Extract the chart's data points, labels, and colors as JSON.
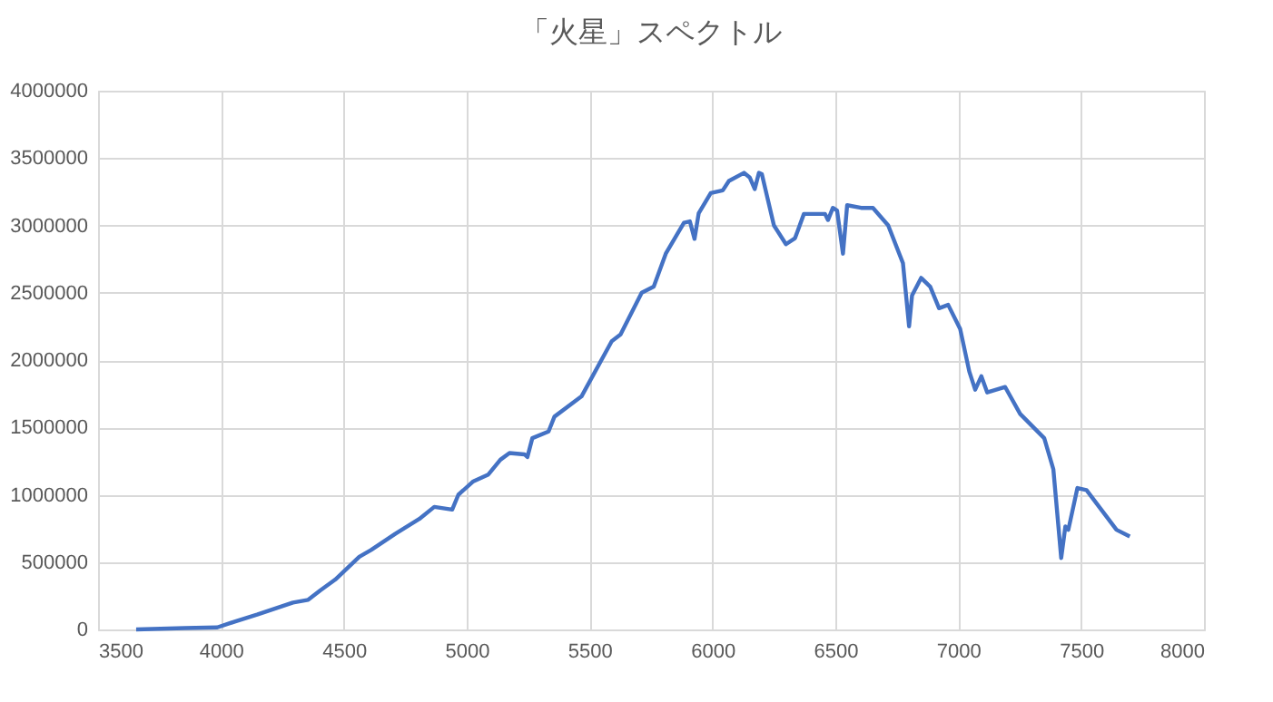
{
  "chart_data": {
    "type": "line",
    "title": "「火星」スペクトル",
    "x": [
      3655,
      3853,
      3985,
      4059,
      4147,
      4293,
      4355,
      4404,
      4465,
      4563,
      4611,
      4709,
      4807,
      4868,
      4941,
      4966,
      5027,
      5088,
      5137,
      5174,
      5235,
      5247,
      5267,
      5333,
      5357,
      5467,
      5590,
      5626,
      5712,
      5761,
      5810,
      5884,
      5908,
      5927,
      5944,
      5993,
      6042,
      6067,
      6128,
      6152,
      6172,
      6189,
      6201,
      6250,
      6299,
      6336,
      6372,
      6458,
      6470,
      6490,
      6507,
      6531,
      6548,
      6605,
      6653,
      6715,
      6775,
      6800,
      6812,
      6849,
      6886,
      6922,
      6959,
      7008,
      7045,
      7069,
      7094,
      7118,
      7191,
      7252,
      7350,
      7387,
      7419,
      7436,
      7448,
      7485,
      7522,
      7644,
      7698
    ],
    "series": [
      {
        "color": "#4472c4",
        "values": [
          0,
          10000,
          15000,
          60000,
          110000,
          200000,
          220000,
          290000,
          370000,
          540000,
          590000,
          710000,
          820000,
          910000,
          890000,
          1000000,
          1100000,
          1150000,
          1260000,
          1310000,
          1300000,
          1280000,
          1420000,
          1470000,
          1580000,
          1730000,
          2140000,
          2190000,
          2500000,
          2545000,
          2790000,
          3020000,
          3030000,
          2900000,
          3090000,
          3240000,
          3260000,
          3330000,
          3390000,
          3355000,
          3270000,
          3390000,
          3380000,
          3000000,
          2860000,
          2905000,
          3085000,
          3085000,
          3040000,
          3130000,
          3110000,
          2790000,
          3150000,
          3130000,
          3130000,
          3000000,
          2720000,
          2250000,
          2480000,
          2610000,
          2545000,
          2385000,
          2410000,
          2230000,
          1915000,
          1780000,
          1880000,
          1760000,
          1800000,
          1600000,
          1420000,
          1190000,
          530000,
          765000,
          740000,
          1050000,
          1035000,
          740000,
          690000
        ]
      }
    ],
    "xlim": [
      3500,
      8000
    ],
    "xticks": [
      3500,
      4000,
      4500,
      5000,
      5500,
      6000,
      6500,
      7000,
      7500,
      8000
    ],
    "ylim": [
      0,
      4000000
    ],
    "yticks": [
      0,
      500000,
      1000000,
      1500000,
      2000000,
      2500000,
      3000000,
      3500000,
      4000000
    ],
    "grid": true,
    "legend": false,
    "marker": "none",
    "line_style": "solid"
  }
}
